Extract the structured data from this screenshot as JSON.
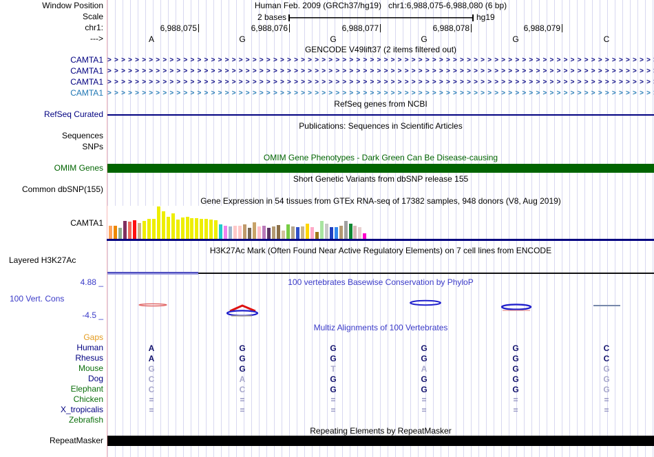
{
  "colors": {
    "navy": "#000080",
    "light_blue_transcript": "#2077B4",
    "omim_green": "#006400",
    "track_blue_text": "#3a3ac8",
    "gaps_orange": "#e39a1e",
    "grid_line": "#d8d8f0",
    "edge_pink": "#f7b8b8",
    "repeat_black": "#000000"
  },
  "header": {
    "window_position_label": "Window Position",
    "assembly_title": "Human Feb. 2009 (GRCh37/hg19)",
    "position_title": "chr1:6,988,075-6,988,080 (6 bp)",
    "scale_label": "Scale",
    "scale_value": "2 bases",
    "scale_genome": "hg19",
    "chrom_label": "chr1:",
    "strand_label": "--->",
    "ruler_numbers": [
      "6,988,075",
      "6,988,076",
      "6,988,077",
      "6,988,078",
      "6,988,079"
    ],
    "bases": [
      "A",
      "G",
      "G",
      "G",
      "G",
      "C"
    ]
  },
  "tracks": {
    "gencode": {
      "title": "GENCODE V49lift37 (2 items filtered out)",
      "transcripts": [
        {
          "label": "CAMTA1",
          "variant": "navy"
        },
        {
          "label": "CAMTA1",
          "variant": "navy"
        },
        {
          "label": "CAMTA1",
          "variant": "navy"
        },
        {
          "label": "CAMTA1",
          "variant": "ltblue"
        }
      ]
    },
    "refseq": {
      "title": "RefSeq genes from NCBI",
      "label": "RefSeq Curated"
    },
    "publications": {
      "title": "Publications: Sequences in Scientific Articles"
    },
    "sequences_label": "Sequences",
    "snps_label": "SNPs",
    "omim": {
      "title": "OMIM Gene Phenotypes - Dark Green Can Be Disease-causing",
      "label": "OMIM Genes"
    },
    "dbsnp": {
      "title": "Short Genetic Variants from dbSNP release 155",
      "label": "Common dbSNP(155)"
    },
    "gtex": {
      "title": "Gene Expression in 54 tissues from GTEx RNA-seq of 17382 samples, 948 donors (V8, Aug 2019)",
      "label": "CAMTA1"
    },
    "h3k27ac": {
      "title": "H3K27Ac Mark (Often Found Near Active Regulatory Elements) on 7 cell lines from ENCODE",
      "label": "Layered H3K27Ac"
    },
    "conservation": {
      "title": "100 vertebrates Basewise Conservation by PhyloP",
      "label": "100 Vert. Cons",
      "max_label": "4.88 _",
      "min_label": "-4.5 _"
    },
    "multiz": {
      "title": "Multiz Alignments of 100 Vertebrates",
      "gaps_label": "Gaps",
      "rows": [
        {
          "label": "Human",
          "color": "navy",
          "cells": [
            "A",
            "G",
            "G",
            "G",
            "G",
            "C"
          ],
          "muted": [
            0,
            0,
            0,
            0,
            0,
            0
          ]
        },
        {
          "label": "Rhesus",
          "color": "navy",
          "cells": [
            "A",
            "G",
            "G",
            "G",
            "G",
            "C"
          ],
          "muted": [
            0,
            0,
            0,
            0,
            0,
            0
          ]
        },
        {
          "label": "Mouse",
          "color": "green",
          "cells": [
            "G",
            "G",
            "T",
            "A",
            "G",
            "G"
          ],
          "muted": [
            1,
            0,
            1,
            1,
            0,
            1
          ]
        },
        {
          "label": "Dog",
          "color": "navy",
          "cells": [
            "C",
            "A",
            "G",
            "G",
            "G",
            "G"
          ],
          "muted": [
            1,
            1,
            0,
            0,
            0,
            1
          ]
        },
        {
          "label": "Elephant",
          "color": "green",
          "cells": [
            "C",
            "C",
            "G",
            "G",
            "G",
            "G"
          ],
          "muted": [
            1,
            1,
            0,
            0,
            0,
            1
          ]
        },
        {
          "label": "Chicken",
          "color": "green",
          "cells": [
            "=",
            "=",
            "=",
            "=",
            "=",
            "="
          ],
          "muted": [
            2,
            2,
            2,
            2,
            2,
            2
          ]
        },
        {
          "label": "X_tropicalis",
          "color": "navy",
          "cells": [
            "=",
            "=",
            "=",
            "=",
            "=",
            "="
          ],
          "muted": [
            2,
            2,
            2,
            2,
            2,
            2
          ]
        },
        {
          "label": "Zebrafish",
          "color": "green",
          "cells": [
            "",
            "",
            "",
            "",
            "",
            ""
          ],
          "muted": [
            0,
            0,
            0,
            0,
            0,
            0
          ]
        }
      ]
    },
    "repeatmasker": {
      "title": "Repeating Elements by RepeatMasker",
      "label": "RepeatMasker"
    }
  },
  "chart_data": {
    "type": "bar",
    "title": "Gene Expression in 54 tissues from GTEx RNA-seq of 17382 samples, 948 donors (V8, Aug 2019)",
    "gene": "CAMTA1",
    "xlabel": "54 GTEx tissues (unlabeled at this zoom)",
    "ylabel": "median expression (unlabeled at this zoom)",
    "values": [
      20,
      20,
      17,
      27,
      26,
      28,
      24,
      27,
      30,
      30,
      48,
      41,
      33,
      38,
      29,
      32,
      33,
      31,
      31,
      30,
      30,
      29,
      28,
      22,
      20,
      19,
      20,
      20,
      22,
      17,
      25,
      19,
      20,
      17,
      19,
      21,
      13,
      22,
      19,
      18,
      19,
      23,
      18,
      11,
      27,
      23,
      18,
      18,
      20,
      27,
      23,
      20,
      18,
      9
    ],
    "colors": [
      "#FFA55F",
      "#EE8800",
      "#8FAF8F",
      "#803060",
      "#EE6A5A",
      "#FF1111",
      "#C8B48C",
      "#EEEE00",
      "#EEEE00",
      "#EEEE00",
      "#EEEE00",
      "#EEEE00",
      "#EEEE00",
      "#EEEE00",
      "#EEEE00",
      "#EEEE00",
      "#EEEE00",
      "#EEEE00",
      "#EEEE00",
      "#EEEE00",
      "#EEEE00",
      "#EEEE00",
      "#EEEE00",
      "#22CCCC",
      "#EE82EE",
      "#9FB6CD",
      "#FFC8C8",
      "#FFC8C8",
      "#C09A6B",
      "#7A6A55",
      "#C8A368",
      "#FFC0CB",
      "#BA7ABA",
      "#5C3566",
      "#B49A73",
      "#8B6F47",
      "#D2C29D",
      "#77CC44",
      "#B3A58C",
      "#3050C8",
      "#C8B48C",
      "#FFD700",
      "#FFAAC8",
      "#A07818",
      "#A8E4A0",
      "#C8C8C8",
      "#2040C0",
      "#3388EE",
      "#B49A73",
      "#A0A0A0",
      "#118833",
      "#D8B8B8",
      "#E8D0D0",
      "#FF00CC"
    ],
    "baseline_color": "#000080"
  }
}
